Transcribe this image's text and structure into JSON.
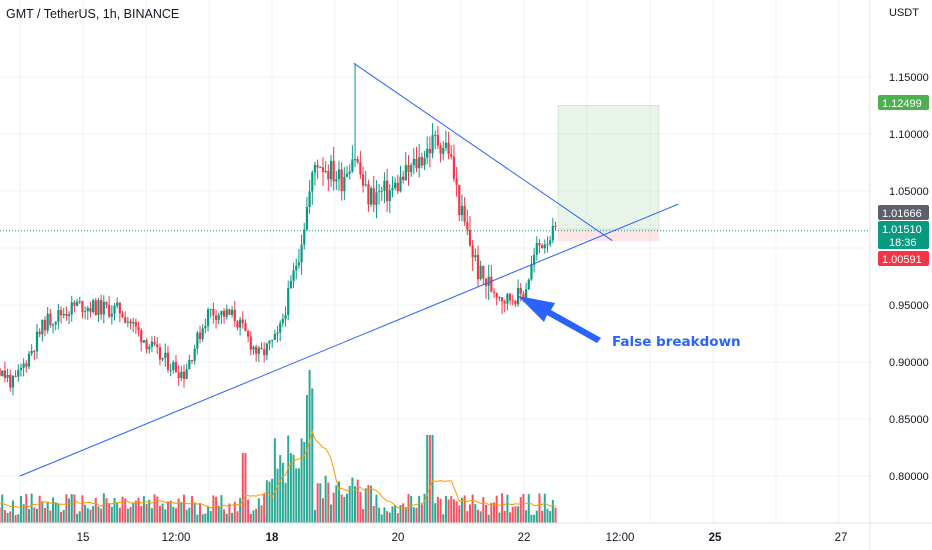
{
  "header": {
    "symbol_title": "GMT / TetherUS, 1h, BINANCE",
    "currency": "USDT"
  },
  "chart_data": {
    "type": "candlestick",
    "title": "GMT / TetherUS, 1h, BINANCE",
    "y_axis": {
      "unit": "USDT",
      "ticks": [
        "1.15000",
        "1.10000",
        "1.05000",
        "0.95000",
        "0.90000",
        "0.85000",
        "0.80000"
      ],
      "tick_values": [
        1.15,
        1.1,
        1.05,
        0.95,
        0.9,
        0.85,
        0.8
      ]
    },
    "x_axis": {
      "ticks": [
        "15",
        "12:00",
        "18",
        "20",
        "22",
        "12:00",
        "25",
        "27"
      ],
      "bold_ticks": [
        "18",
        "25"
      ]
    },
    "price_labels": [
      {
        "name": "take-profit",
        "value": "1.12499",
        "color": "#4caf50"
      },
      {
        "name": "entry",
        "value": "1.01666",
        "color": "#5d606b"
      },
      {
        "name": "last-price",
        "value": "1.01510",
        "color": "#089981",
        "countdown": "18:36"
      },
      {
        "name": "stop-loss",
        "value": "1.00591",
        "color": "#f23645"
      }
    ],
    "annotation": "False breakdown",
    "trendlines": [
      {
        "name": "descending-resistance",
        "from": [
          19.3,
          1.162
        ],
        "to": [
          23.4,
          1.0065
        ]
      },
      {
        "name": "ascending-support",
        "from": [
          14.0,
          0.8
        ],
        "to": [
          24.45,
          1.0385
        ]
      }
    ],
    "position": {
      "entry": 1.01666,
      "target": 1.12499,
      "stop": 1.00591
    },
    "colors": {
      "up": "#089981",
      "down": "#f23645",
      "volume_ma": "#ff9800",
      "trendline": "#2962ff"
    },
    "grid": true
  }
}
